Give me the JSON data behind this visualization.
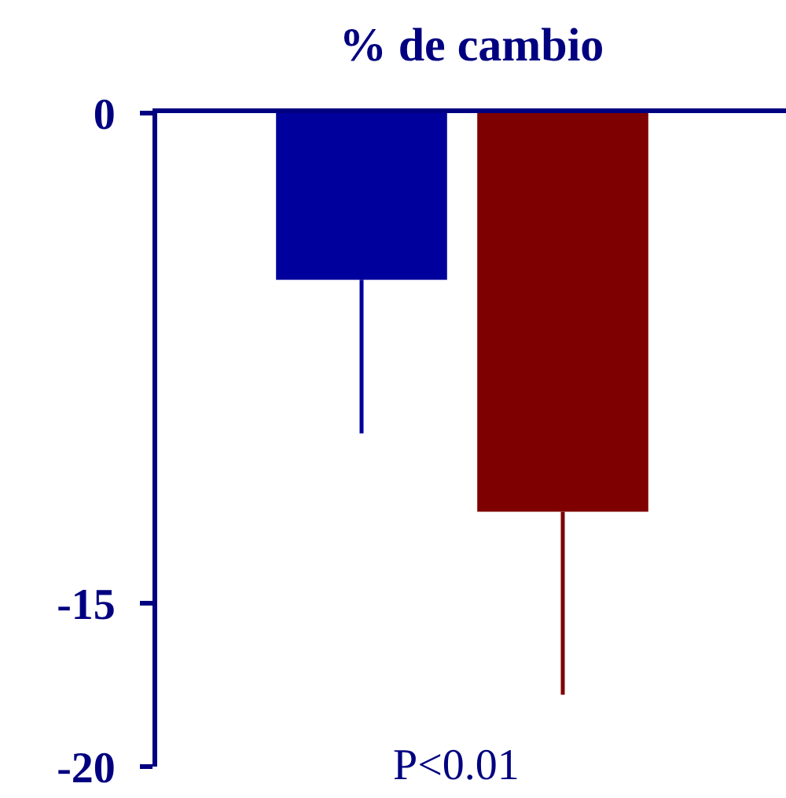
{
  "chart_data": {
    "type": "bar",
    "title": "% de cambio",
    "categories": [
      null,
      null
    ],
    "values": [
      -5.1,
      -12.2
    ],
    "colors": [
      "#00009c",
      "#7f0000"
    ],
    "errors": [
      [
        -9.8,
        -5.1
      ],
      [
        -17.8,
        -12.2
      ]
    ],
    "ylim": [
      -20,
      0
    ],
    "yticks": [
      0,
      -15,
      -20
    ],
    "tick_labels": "y",
    "annotations": [
      "P<0.01"
    ]
  }
}
